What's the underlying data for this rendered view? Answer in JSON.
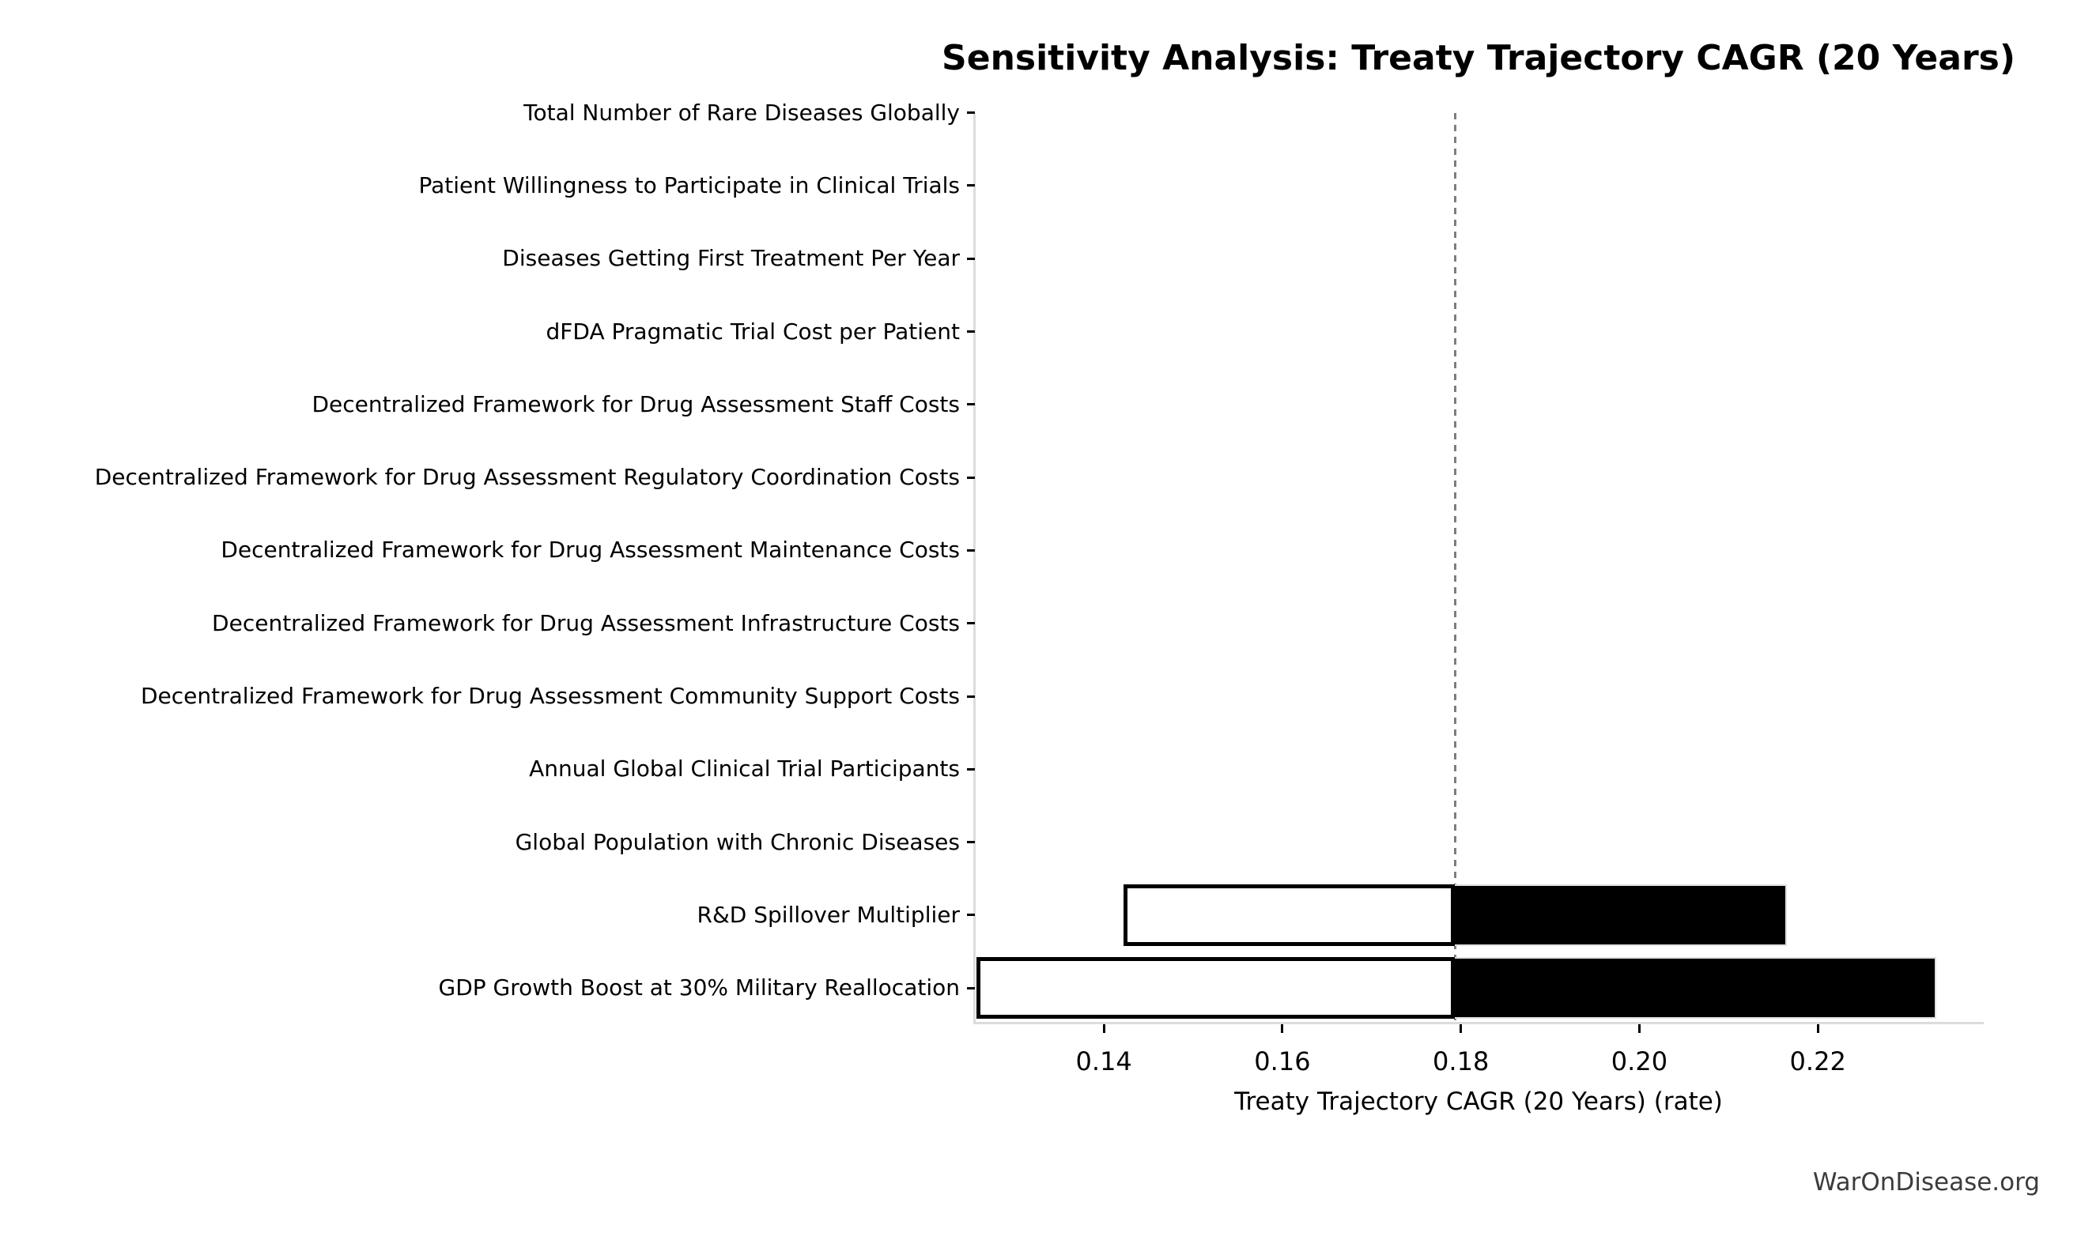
{
  "watermark": "WarOnDisease.org",
  "colors": {
    "background": "#ffffff",
    "bar_low_fill": "#ffffff",
    "bar_high_fill": "#000000",
    "bar_low_edge": "#000000",
    "bar_high_edge": "#e0e0e0",
    "baseline_line": "#7d7d7d",
    "spine": "#dcdcdc",
    "text": "#000000",
    "watermark_text": "#3c3c3c"
  },
  "chart_data": {
    "type": "bar",
    "subtype": "tornado-sensitivity",
    "orientation": "horizontal",
    "title": "Sensitivity Analysis: Treaty Trajectory CAGR (20 Years)",
    "xlabel": "Treaty Trajectory CAGR (20 Years) (rate)",
    "ylabel": "",
    "grid": false,
    "legend": null,
    "baseline": 0.1793,
    "xlim": [
      0.1255,
      0.2385
    ],
    "xticks": [
      0.14,
      0.16,
      0.18,
      0.2,
      0.22
    ],
    "categories": [
      "Total Number of Rare Diseases Globally",
      "Patient Willingness to Participate in Clinical Trials",
      "Diseases Getting First Treatment Per Year",
      "dFDA Pragmatic Trial Cost per Patient",
      "Decentralized Framework for Drug Assessment Staff Costs",
      "Decentralized Framework for Drug Assessment Regulatory Coordination Costs",
      "Decentralized Framework for Drug Assessment Maintenance Costs",
      "Decentralized Framework for Drug Assessment Infrastructure Costs",
      "Decentralized Framework for Drug Assessment Community Support Costs",
      "Annual Global Clinical Trial Participants",
      "Global Population with Chronic Diseases",
      "R&D Spillover Multiplier",
      "GDP Growth Boost at 30% Military Reallocation"
    ],
    "series": [
      {
        "name": "low_value",
        "fill": "#ffffff",
        "values": [
          0.1793,
          0.1793,
          0.1793,
          0.1793,
          0.1793,
          0.1793,
          0.1793,
          0.1793,
          0.1793,
          0.1793,
          0.1793,
          0.1422,
          0.1257
        ]
      },
      {
        "name": "high_value",
        "fill": "#000000",
        "values": [
          0.1793,
          0.1793,
          0.1793,
          0.1793,
          0.1793,
          0.1793,
          0.1793,
          0.1793,
          0.1793,
          0.1793,
          0.1793,
          0.2165,
          0.2333
        ]
      }
    ]
  }
}
